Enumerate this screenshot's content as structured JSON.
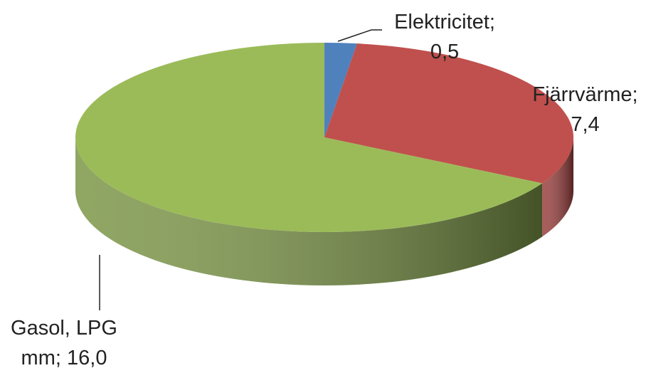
{
  "chart_data": {
    "type": "pie3d",
    "categories": [
      "Elektricitet",
      "Fjärrvärme",
      "Gasol, LPG mm"
    ],
    "values": [
      0.5,
      7.4,
      16.0
    ],
    "value_labels": [
      "0,5",
      "7,4",
      "16,0"
    ],
    "separator": ";",
    "colors": [
      "#4f81bd",
      "#c0504d",
      "#9bbb59"
    ]
  }
}
